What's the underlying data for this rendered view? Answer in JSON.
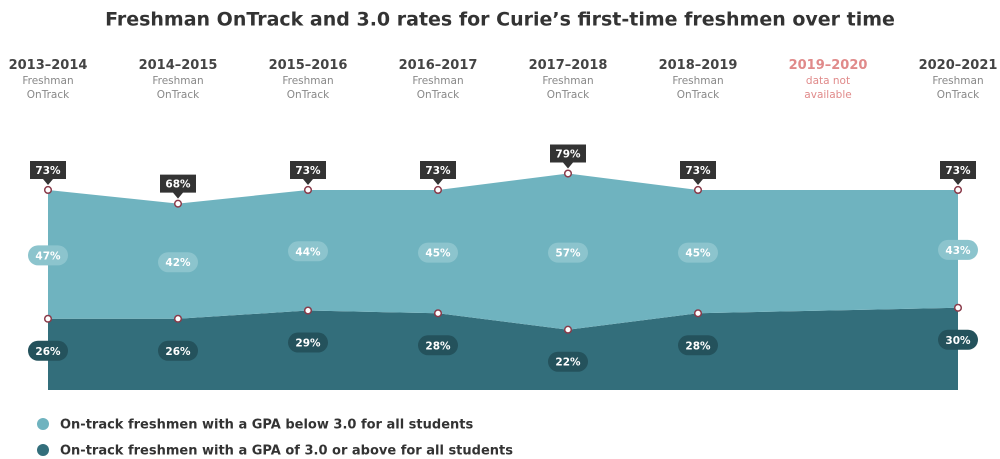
{
  "chart_data": {
    "type": "stacked_area",
    "title": "Freshman OnTrack and 3.0 rates for Curie’s first-time freshmen over time",
    "categories": [
      "2013–2014",
      "2014–2015",
      "2015–2016",
      "2016–2017",
      "2017–2018",
      "2018–2019",
      "2019–2020",
      "2020–2021"
    ],
    "category_notes": [
      "Freshman OnTrack",
      "Freshman OnTrack",
      "Freshman OnTrack",
      "Freshman OnTrack",
      "Freshman OnTrack",
      "Freshman OnTrack",
      "data not available",
      "Freshman OnTrack"
    ],
    "series": [
      {
        "name": "On-track freshmen with a GPA of 3.0 or above for all students",
        "color": "#336e7b",
        "values": [
          26,
          26,
          29,
          28,
          22,
          28,
          null,
          30
        ],
        "value_labels": [
          "26%",
          "26%",
          "29%",
          "28%",
          "22%",
          "28%",
          null,
          "30%"
        ]
      },
      {
        "name": "On-track freshmen with a GPA below 3.0 for all students",
        "color": "#6fb3bf",
        "values": [
          47,
          42,
          44,
          45,
          57,
          45,
          null,
          43
        ],
        "value_labels": [
          "47%",
          "42%",
          "44%",
          "45%",
          "57%",
          "45%",
          null,
          "43%"
        ]
      }
    ],
    "totals": {
      "values": [
        73,
        68,
        73,
        73,
        79,
        73,
        null,
        73
      ],
      "value_labels": [
        "73%",
        "68%",
        "73%",
        "73%",
        "79%",
        "73%",
        null,
        "73%"
      ]
    },
    "ylim": [
      0,
      100
    ]
  }
}
